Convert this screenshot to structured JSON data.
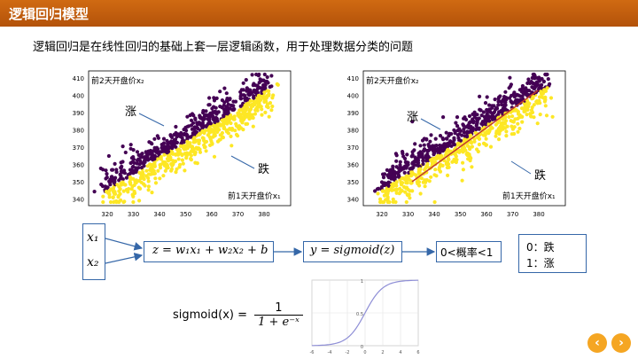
{
  "header": {
    "title": "逻辑回归模型"
  },
  "subtitle": "逻辑回归是在线性回归的基础上套一层逻辑函数，用于处理数据分类的问题",
  "plots": {
    "ylabel": "前2天开盘价x₂",
    "xlabel": "前1天开盘价x₁",
    "rise_label": "涨",
    "fall_label": "跌",
    "x_ticks": [
      "320",
      "330",
      "340",
      "350",
      "360",
      "370",
      "380"
    ],
    "y_ticks": [
      "410",
      "400",
      "390",
      "380",
      "370",
      "360",
      "350",
      "340"
    ]
  },
  "flow": {
    "x1": "x₁",
    "x2": "x₂",
    "linear": "z = w₁x₁ + w₂x₂ + b",
    "sigmoid_box": "y = sigmoid(z)",
    "prob": "0<概率<1",
    "legend_line1": "0：跌",
    "legend_line2": "1：涨"
  },
  "formula": {
    "lhs": "sigmoid(x) =",
    "num": "1",
    "den": "1 + e⁻ˣ"
  },
  "sigmoid_plot": {
    "x_ticks": [
      "-6",
      "-4",
      "-2",
      "0",
      "2",
      "4",
      "6"
    ],
    "y_ticks": [
      "1",
      "0.5",
      "0"
    ]
  },
  "nav": {
    "prev": "‹",
    "next": "›"
  },
  "colors": {
    "purple": "#440154",
    "yellow": "#fde725",
    "accent": "#c55a11",
    "box": "#3567a8"
  }
}
